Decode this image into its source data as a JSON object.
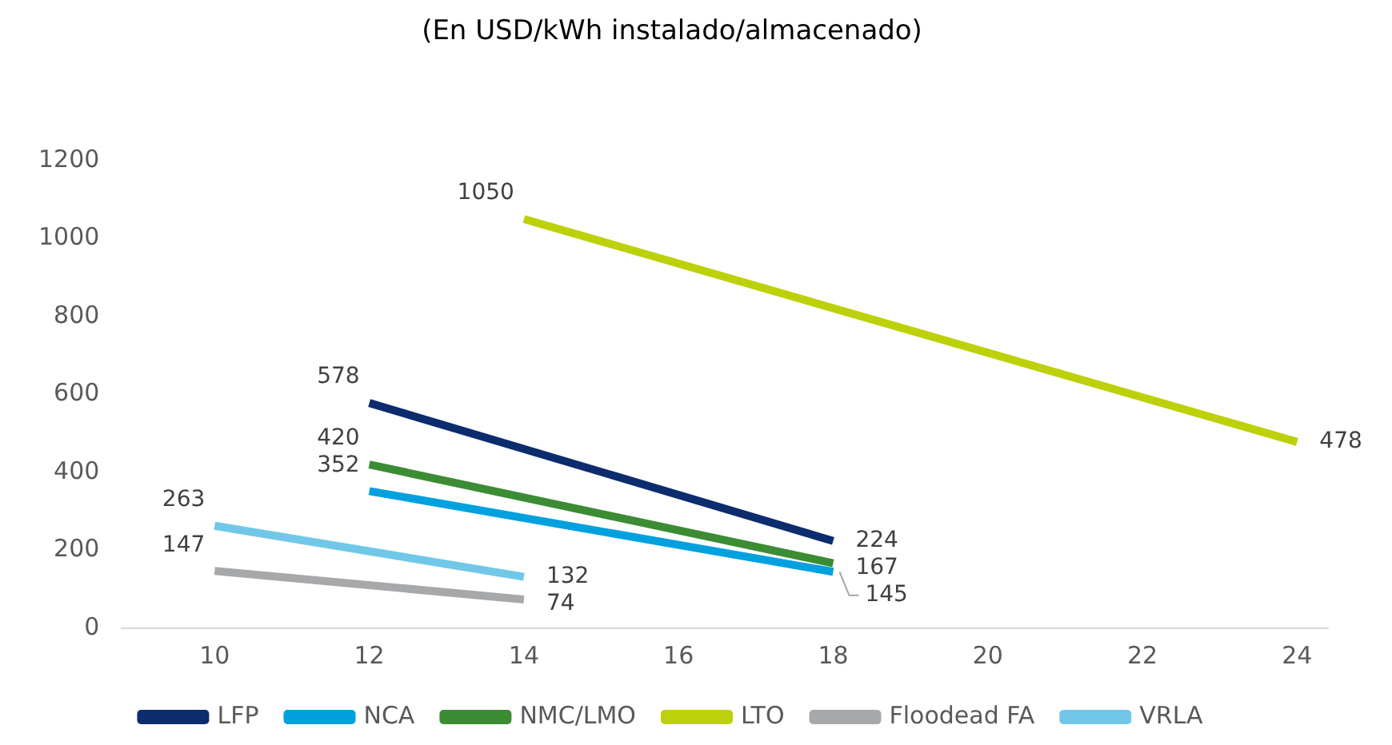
{
  "chart_data": {
    "type": "line",
    "title": "(En USD/kWh instalado/almacenado)",
    "series": [
      {
        "name": "LFP",
        "color": "#0c2c6e",
        "x": [
          12,
          18
        ],
        "values": [
          578,
          224
        ]
      },
      {
        "name": "NCA",
        "color": "#00a1de",
        "x": [
          12,
          18
        ],
        "values": [
          352,
          145
        ]
      },
      {
        "name": "NMC/LMO",
        "color": "#3b8c34",
        "x": [
          12,
          18
        ],
        "values": [
          420,
          167
        ]
      },
      {
        "name": "LTO",
        "color": "#bcd10a",
        "x": [
          14,
          24
        ],
        "values": [
          1050,
          478
        ]
      },
      {
        "name": "Floodead FA",
        "color": "#a7a8aa",
        "x": [
          10,
          14
        ],
        "values": [
          147,
          74
        ]
      },
      {
        "name": "VRLA",
        "color": "#71c7e8",
        "x": [
          10,
          14
        ],
        "values": [
          263,
          132
        ]
      }
    ],
    "xlim": [
      8.8,
      24.4
    ],
    "xticks": [
      10,
      12,
      14,
      16,
      18,
      20,
      22,
      24
    ],
    "ylim": [
      0,
      1200
    ],
    "yticks": [
      0,
      200,
      400,
      600,
      800,
      1000,
      1200
    ],
    "grid": false,
    "legend": "bottom",
    "marker": "none",
    "line_style": "solid",
    "data_labels": true
  }
}
